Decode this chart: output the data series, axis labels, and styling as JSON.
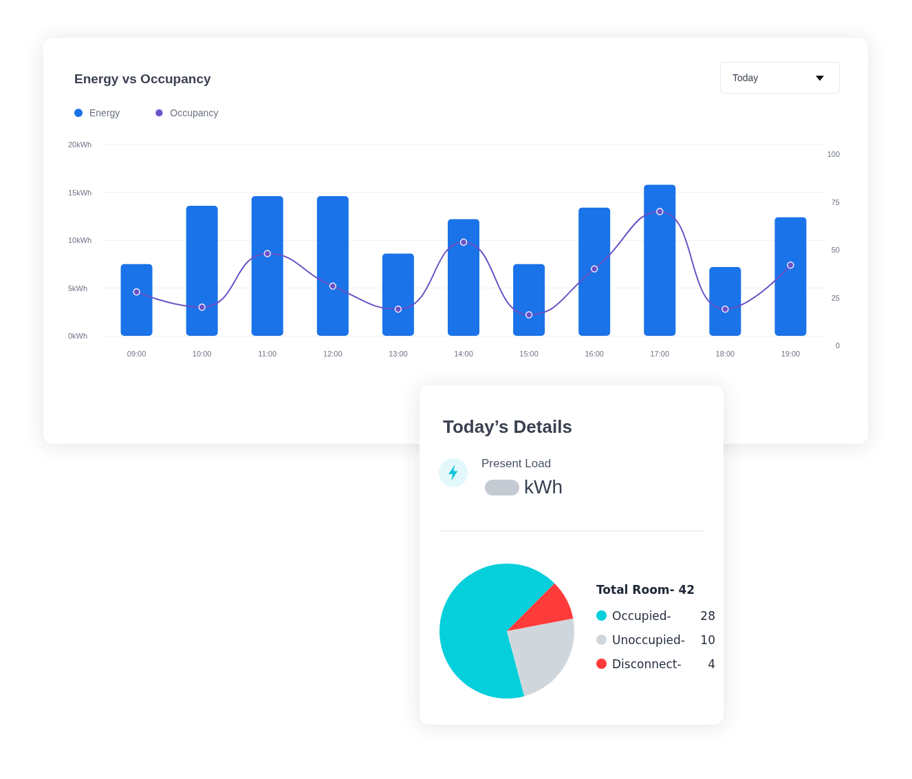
{
  "chart_data": [
    {
      "type": "bar",
      "title": "Energy vs Occupancy",
      "categories": [
        "09:00",
        "10:00",
        "11:00",
        "12:00",
        "13:00",
        "14:00",
        "15:00",
        "16:00",
        "17:00",
        "18:00",
        "19:00"
      ],
      "series": [
        {
          "name": "Energy",
          "type": "bar",
          "color": "#1a73e8",
          "values": [
            7.5,
            13.6,
            14.6,
            14.6,
            8.6,
            12.2,
            7.5,
            13.4,
            15.8,
            7.2,
            12.4
          ]
        },
        {
          "name": "Occupancy",
          "type": "line",
          "axis": "y2",
          "color": "#6a4fc6",
          "values": [
            28,
            20,
            48,
            31,
            19,
            54,
            16,
            40,
            70,
            19,
            42
          ]
        }
      ],
      "ylim": [
        0,
        20
      ],
      "yticks": [
        {
          "value": 0,
          "label": "0kWh"
        },
        {
          "value": 5,
          "label": "5kWh"
        },
        {
          "value": 10,
          "label": "10kWh"
        },
        {
          "value": 15,
          "label": "15kWh"
        },
        {
          "value": 20,
          "label": "20kWh"
        }
      ],
      "y2lim": [
        0,
        100
      ],
      "y2ticks": [
        0,
        25,
        50,
        75,
        100
      ],
      "grid": "y",
      "legend": "top left",
      "marker": "circle",
      "annotations": [
        "Today"
      ]
    },
    {
      "type": "pie",
      "title": "Today’s Details",
      "categories": [
        "Occupied-",
        "Unoccupied-",
        "Disconnect-"
      ],
      "values": [
        28,
        10,
        4
      ],
      "colors": [
        "#06cfdc",
        "#d0d7dc",
        "#ff3a3a"
      ],
      "legend": "right",
      "legend_title": "Total Room- 42",
      "data_labels": true,
      "annotations": [
        "Present Load",
        "kWh"
      ]
    }
  ]
}
